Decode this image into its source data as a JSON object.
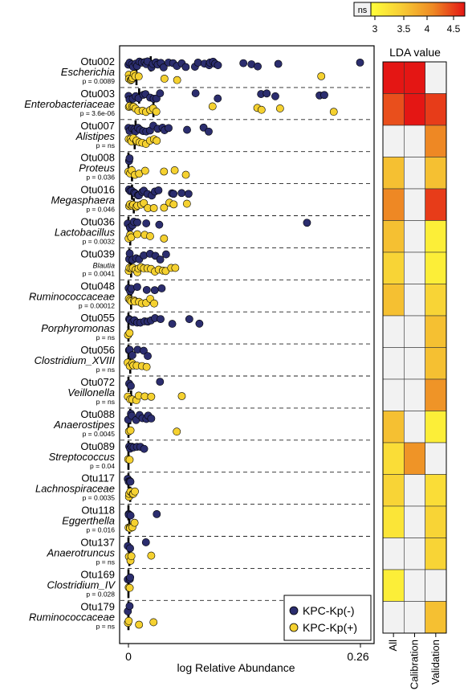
{
  "chart_data": {
    "type": "scatter",
    "xlabel": "log Relative Abundance",
    "xlim": [
      0,
      0.26
    ],
    "x_ticks": [
      "0",
      "0.26"
    ],
    "legend": {
      "placement": "bottom-right",
      "entries": [
        {
          "name": "KPC-Kp(-)",
          "color": "#2b2d6e"
        },
        {
          "name": "KPC-Kp(+)",
          "color": "#f5d130"
        }
      ]
    },
    "series_colors": {
      "neg": "#2b2d6e",
      "pos": "#f5d130"
    },
    "taxa": [
      {
        "otu": "Otu002",
        "name": "Escherichia",
        "p": "p = 0.0089",
        "neg_median": 0.025,
        "pos_median": 0.009,
        "neg_x": [
          0.0,
          0.002,
          0.004,
          0.006,
          0.008,
          0.01,
          0.012,
          0.015,
          0.018,
          0.02,
          0.022,
          0.025,
          0.028,
          0.03,
          0.033,
          0.036,
          0.04,
          0.045,
          0.05,
          0.055,
          0.06,
          0.065,
          0.075,
          0.078,
          0.085,
          0.09,
          0.092,
          0.095,
          0.098,
          0.1,
          0.128,
          0.138,
          0.145,
          0.168,
          0.26
        ],
        "pos_x": [
          0.0,
          0.001,
          0.002,
          0.003,
          0.004,
          0.006,
          0.008,
          0.012,
          0.04,
          0.055,
          0.217
        ]
      },
      {
        "otu": "Otu003",
        "name": "Enterobacteriaceae",
        "p": "p = 3.6e-06",
        "neg_median": 0.012,
        "pos_median": 0.028,
        "neg_x": [
          0.0,
          0.002,
          0.005,
          0.008,
          0.012,
          0.016,
          0.02,
          0.024,
          0.028,
          0.032,
          0.036,
          0.076,
          0.1,
          0.148,
          0.155,
          0.165,
          0.215,
          0.22
        ],
        "pos_x": [
          0.0,
          0.002,
          0.004,
          0.006,
          0.008,
          0.012,
          0.016,
          0.02,
          0.024,
          0.028,
          0.032,
          0.095,
          0.145,
          0.15,
          0.17,
          0.23
        ]
      },
      {
        "otu": "Otu007",
        "name": "Alistipes",
        "p": "p = ns",
        "neg_median": 0.008,
        "pos_median": 0.007,
        "neg_x": [
          0.0,
          0.002,
          0.004,
          0.006,
          0.008,
          0.01,
          0.013,
          0.016,
          0.02,
          0.024,
          0.028,
          0.032,
          0.038,
          0.04,
          0.045,
          0.065,
          0.085,
          0.09
        ],
        "pos_x": [
          0.0,
          0.002,
          0.004,
          0.006,
          0.008,
          0.01,
          0.013,
          0.016,
          0.02,
          0.024,
          0.028,
          0.032
        ]
      },
      {
        "otu": "Otu008",
        "name": "Proteus",
        "p": "p = 0.036",
        "neg_median": 0.0,
        "pos_median": 0.004,
        "neg_x": [
          0.0,
          0.002
        ],
        "pos_x": [
          0.0,
          0.002,
          0.004,
          0.008,
          0.012,
          0.018,
          0.04,
          0.052,
          0.065
        ]
      },
      {
        "otu": "Otu016",
        "name": "Megasphaera",
        "p": "p = 0.046",
        "neg_median": 0.004,
        "pos_median": 0.006,
        "neg_x": [
          0.0,
          0.002,
          0.004,
          0.006,
          0.008,
          0.01,
          0.012,
          0.015,
          0.018,
          0.022,
          0.026,
          0.03,
          0.034,
          0.048,
          0.05,
          0.06,
          0.068
        ],
        "pos_x": [
          0.0,
          0.002,
          0.004,
          0.006,
          0.008,
          0.01,
          0.014,
          0.018,
          0.022,
          0.028,
          0.04,
          0.046,
          0.05,
          0.066
        ]
      },
      {
        "otu": "Otu036",
        "name": "Lactobacillus",
        "p": "p = 0.0032",
        "neg_median": 0.0,
        "pos_median": 0.002,
        "neg_x": [
          0.0,
          0.002,
          0.004,
          0.006,
          0.01,
          0.02,
          0.035,
          0.2
        ],
        "pos_x": [
          0.0,
          0.002,
          0.004,
          0.01,
          0.018,
          0.025,
          0.04
        ]
      },
      {
        "otu": "Otu039",
        "name": "Blautia",
        "p": "p = 0.0041",
        "neg_median": 0.001,
        "pos_median": 0.003,
        "neg_x": [
          0.0,
          0.002,
          0.004,
          0.008,
          0.012,
          0.018,
          0.024,
          0.03,
          0.036,
          0.042
        ],
        "pos_x": [
          0.0,
          0.002,
          0.004,
          0.006,
          0.008,
          0.01,
          0.012,
          0.015,
          0.018,
          0.022,
          0.026,
          0.03,
          0.034,
          0.038,
          0.042,
          0.048,
          0.052
        ]
      },
      {
        "otu": "Otu048",
        "name": "Ruminococcaceae",
        "p": "p = 0.00012",
        "neg_median": 0.0,
        "pos_median": 0.003,
        "neg_x": [
          0.0,
          0.002,
          0.004,
          0.01,
          0.02,
          0.03,
          0.038
        ],
        "pos_x": [
          0.0,
          0.002,
          0.004,
          0.006,
          0.008,
          0.012,
          0.016,
          0.02,
          0.024,
          0.028
        ]
      },
      {
        "otu": "Otu055",
        "name": "Porphyromonas",
        "p": "p = ns",
        "neg_median": 0.0,
        "pos_median": 0.0,
        "neg_x": [
          0.0,
          0.002,
          0.004,
          0.006,
          0.01,
          0.014,
          0.018,
          0.022,
          0.026,
          0.03,
          0.036,
          0.05,
          0.068,
          0.08
        ],
        "pos_x": [
          0.0,
          0.001
        ]
      },
      {
        "otu": "Otu056",
        "name": "Clostridium_XVIII",
        "p": "p = ns",
        "neg_median": 0.0,
        "pos_median": 0.002,
        "neg_x": [
          0.0,
          0.002,
          0.004,
          0.01,
          0.018,
          0.022
        ],
        "pos_x": [
          0.0,
          0.002,
          0.004,
          0.006,
          0.01,
          0.016,
          0.02
        ]
      },
      {
        "otu": "Otu072",
        "name": "Veillonella",
        "p": "p = ns",
        "neg_median": 0.0,
        "pos_median": 0.003,
        "neg_x": [
          0.0,
          0.002,
          0.035
        ],
        "pos_x": [
          0.0,
          0.002,
          0.004,
          0.008,
          0.012,
          0.018,
          0.025,
          0.06
        ]
      },
      {
        "otu": "Otu088",
        "name": "Anaerostipes",
        "p": "p = 0.0045",
        "neg_median": 0.002,
        "pos_median": 0.0,
        "neg_x": [
          0.0,
          0.002,
          0.004,
          0.008,
          0.012,
          0.016,
          0.02,
          0.022,
          0.025
        ],
        "pos_x": [
          0.0,
          0.002,
          0.055
        ]
      },
      {
        "otu": "Otu089",
        "name": "Streptococcus",
        "p": "p = 0.04",
        "neg_median": 0.0,
        "pos_median": 0.0,
        "neg_x": [
          0.0,
          0.002,
          0.004,
          0.006,
          0.01,
          0.014,
          0.018
        ],
        "pos_x": [
          0.0,
          0.001
        ]
      },
      {
        "otu": "Otu117",
        "name": "Lachnospiraceae",
        "p": "p = 0.0035",
        "neg_median": 0.0,
        "pos_median": 0.002,
        "neg_x": [
          0.0,
          0.001,
          0.002,
          0.003
        ],
        "pos_x": [
          0.0,
          0.001,
          0.002,
          0.004,
          0.006,
          0.008
        ]
      },
      {
        "otu": "Otu118",
        "name": "Eggerthella",
        "p": "p = 0.016",
        "neg_median": 0.0,
        "pos_median": 0.001,
        "neg_x": [
          0.0,
          0.001,
          0.002,
          0.032
        ],
        "pos_x": [
          0.0,
          0.001,
          0.002,
          0.004,
          0.006
        ]
      },
      {
        "otu": "Otu137",
        "name": "Anaerotruncus",
        "p": "p = ns",
        "neg_median": 0.0,
        "pos_median": 0.001,
        "neg_x": [
          0.0,
          0.001,
          0.02
        ],
        "pos_x": [
          0.0,
          0.002,
          0.004,
          0.025
        ]
      },
      {
        "otu": "Otu169",
        "name": "Clostridium_IV",
        "p": "p = 0.028",
        "neg_median": 0.0,
        "pos_median": 0.0,
        "neg_x": [
          0.0,
          0.001,
          0.002
        ],
        "pos_x": [
          0.0,
          0.001
        ]
      },
      {
        "otu": "Otu179",
        "name": "Ruminococcaceae",
        "p": "p = ns",
        "neg_median": 0.0,
        "pos_median": 0.0,
        "neg_x": [
          0.0,
          0.001
        ],
        "pos_x": [
          0.0,
          0.001,
          0.012,
          0.028
        ]
      }
    ],
    "heatmap": {
      "title": "LDA value",
      "columns": [
        "All",
        "Calibration",
        "Validation"
      ],
      "colorbar": {
        "labels": [
          "ns",
          "3",
          "3.5",
          "4",
          "4.5"
        ],
        "min": 2.8,
        "max": 4.6
      },
      "values": [
        [
          4.6,
          4.6,
          null
        ],
        [
          4.3,
          4.6,
          4.4
        ],
        [
          null,
          null,
          4.0
        ],
        [
          3.5,
          null,
          3.5
        ],
        [
          4.0,
          null,
          4.4
        ],
        [
          3.5,
          null,
          3.0
        ],
        [
          3.3,
          null,
          3.0
        ],
        [
          3.5,
          null,
          3.3
        ],
        [
          null,
          null,
          3.5
        ],
        [
          null,
          null,
          3.5
        ],
        [
          null,
          null,
          3.9
        ],
        [
          3.5,
          null,
          3.0
        ],
        [
          3.2,
          3.9,
          null
        ],
        [
          3.3,
          null,
          3.2
        ],
        [
          3.1,
          null,
          3.3
        ],
        [
          null,
          null,
          3.3
        ],
        [
          3.0,
          null,
          null
        ],
        [
          null,
          null,
          3.5
        ]
      ]
    }
  }
}
